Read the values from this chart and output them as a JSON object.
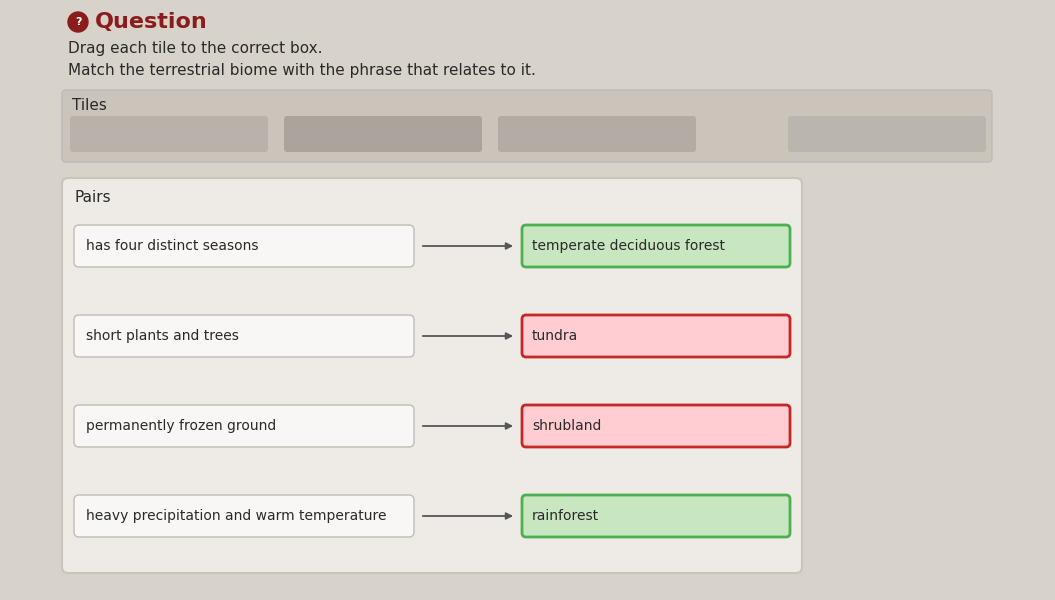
{
  "title": "Question",
  "subtitle1": "Drag each tile to the correct box.",
  "subtitle2": "Match the terrestrial biome with the phrase that relates to it.",
  "tiles_label": "Tiles",
  "pairs_label": "Pairs",
  "left_items": [
    "has four distinct seasons",
    "short plants and trees",
    "permanently frozen ground",
    "heavy precipitation and warm temperature"
  ],
  "right_items": [
    "temperate deciduous forest",
    "tundra",
    "shrubland",
    "rainforest"
  ],
  "right_colors": [
    {
      "bg": "#c8e6c0",
      "border": "#4caf50"
    },
    {
      "bg": "#ffcdd2",
      "border": "#c62828"
    },
    {
      "bg": "#ffcdd2",
      "border": "#c62828"
    },
    {
      "bg": "#c8e6c0",
      "border": "#4caf50"
    }
  ],
  "bg_color": "#d8d3ca",
  "tiles_bg": "#cac4bb",
  "tile_colors": [
    "#b8b2aa",
    "#aaa49c",
    "#b2aca4",
    "#bab5ae"
  ],
  "pairs_bg": "#eeebe6",
  "pairs_border": "#c8c4be",
  "left_box_bg": "#f8f7f5",
  "left_box_border": "#c0bcb6",
  "question_icon_color": "#8b1c1c",
  "question_title_color": "#8b1c1c",
  "text_color": "#2a2a2a",
  "arrow_color": "#555555",
  "font_size_title": 16,
  "font_size_subtitle": 11,
  "font_size_label": 11,
  "font_size_item": 10
}
